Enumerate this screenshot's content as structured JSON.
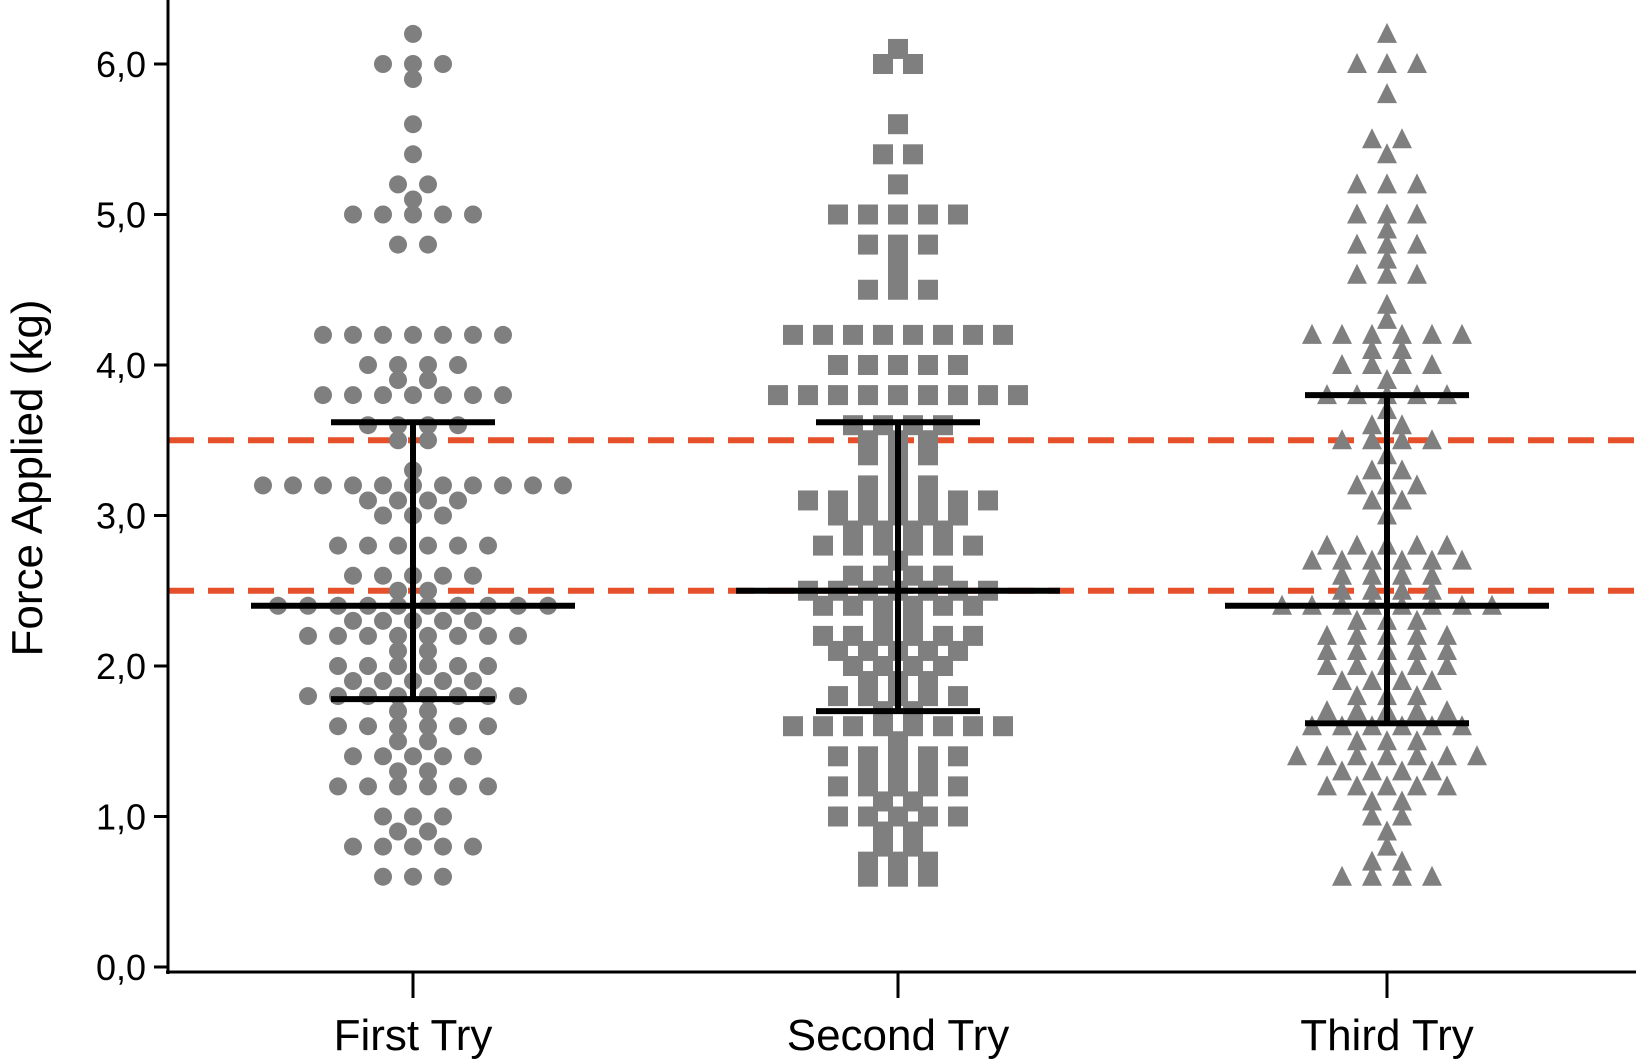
{
  "chart_data": {
    "type": "scatter",
    "title": "",
    "xlabel": "",
    "ylabel": "Force Applied (kg)",
    "categories": [
      "First Try",
      "Second Try",
      "Third Try"
    ],
    "ylim": [
      0,
      6.3
    ],
    "yticks": [
      "0,0",
      "1,0",
      "2,0",
      "3,0",
      "4,0",
      "5,0",
      "6,0"
    ],
    "reference_lines": [
      2.5,
      3.5
    ],
    "grid": false,
    "legend": "none",
    "colors": {
      "points": "#7f7f7f",
      "error_bars": "#000000",
      "reference": "#e5502a"
    },
    "series": [
      {
        "category": "First Try",
        "marker": "circle",
        "mean": 2.4,
        "error": [
          1.78,
          3.62
        ],
        "values": [
          6.2,
          6.0,
          6.0,
          6.0,
          5.9,
          5.6,
          5.4,
          5.2,
          5.2,
          5.1,
          5.0,
          5.0,
          5.0,
          5.0,
          5.0,
          4.8,
          4.8,
          4.2,
          4.2,
          4.2,
          4.2,
          4.2,
          4.2,
          4.2,
          4.0,
          4.0,
          4.0,
          4.0,
          3.9,
          3.9,
          3.8,
          3.8,
          3.8,
          3.8,
          3.8,
          3.8,
          3.8,
          3.6,
          3.6,
          3.6,
          3.6,
          3.5,
          3.5,
          3.3,
          3.2,
          3.2,
          3.2,
          3.2,
          3.2,
          3.2,
          3.2,
          3.2,
          3.2,
          3.2,
          3.2,
          3.1,
          3.1,
          3.1,
          3.1,
          3.0,
          3.0,
          3.0,
          2.8,
          2.8,
          2.8,
          2.8,
          2.8,
          2.8,
          2.6,
          2.6,
          2.6,
          2.6,
          2.6,
          2.5,
          2.5,
          2.4,
          2.4,
          2.4,
          2.4,
          2.4,
          2.4,
          2.4,
          2.4,
          2.4,
          2.4,
          2.3,
          2.3,
          2.3,
          2.3,
          2.3,
          2.2,
          2.2,
          2.2,
          2.2,
          2.2,
          2.2,
          2.2,
          2.2,
          2.1,
          2.1,
          2.0,
          2.0,
          2.0,
          2.0,
          2.0,
          2.0,
          1.9,
          1.9,
          1.9,
          1.9,
          1.9,
          1.8,
          1.8,
          1.8,
          1.8,
          1.8,
          1.8,
          1.8,
          1.8,
          1.7,
          1.7,
          1.6,
          1.6,
          1.6,
          1.6,
          1.6,
          1.6,
          1.5,
          1.5,
          1.4,
          1.4,
          1.4,
          1.4,
          1.4,
          1.3,
          1.3,
          1.2,
          1.2,
          1.2,
          1.2,
          1.2,
          1.2,
          1.0,
          1.0,
          1.0,
          0.9,
          0.9,
          0.8,
          0.8,
          0.8,
          0.8,
          0.8,
          0.6,
          0.6,
          0.6
        ]
      },
      {
        "category": "Second Try",
        "marker": "square",
        "mean": 2.5,
        "error": [
          1.7,
          3.62
        ],
        "values": [
          6.1,
          6.0,
          6.0,
          5.6,
          5.4,
          5.4,
          5.2,
          5.0,
          5.0,
          5.0,
          5.0,
          5.0,
          4.8,
          4.8,
          4.8,
          4.7,
          4.6,
          4.5,
          4.5,
          4.5,
          4.2,
          4.2,
          4.2,
          4.2,
          4.2,
          4.2,
          4.2,
          4.2,
          4.0,
          4.0,
          4.0,
          4.0,
          4.0,
          3.8,
          3.8,
          3.8,
          3.8,
          3.8,
          3.8,
          3.8,
          3.8,
          3.8,
          3.6,
          3.6,
          3.6,
          3.6,
          3.5,
          3.5,
          3.5,
          3.4,
          3.4,
          3.4,
          3.3,
          3.2,
          3.2,
          3.2,
          3.1,
          3.1,
          3.1,
          3.1,
          3.1,
          3.1,
          3.1,
          3.0,
          3.0,
          3.0,
          3.0,
          3.0,
          2.9,
          2.9,
          2.9,
          2.9,
          2.8,
          2.8,
          2.8,
          2.8,
          2.8,
          2.8,
          2.7,
          2.6,
          2.6,
          2.6,
          2.6,
          2.5,
          2.5,
          2.5,
          2.5,
          2.5,
          2.5,
          2.5,
          2.4,
          2.4,
          2.4,
          2.4,
          2.4,
          2.4,
          2.3,
          2.3,
          2.2,
          2.2,
          2.2,
          2.2,
          2.2,
          2.2,
          2.1,
          2.1,
          2.1,
          2.1,
          2.1,
          2.0,
          2.0,
          2.0,
          2.0,
          1.9,
          1.9,
          1.9,
          1.8,
          1.8,
          1.8,
          1.8,
          1.8,
          1.7,
          1.7,
          1.6,
          1.6,
          1.6,
          1.6,
          1.6,
          1.6,
          1.6,
          1.6,
          1.5,
          1.4,
          1.4,
          1.4,
          1.4,
          1.4,
          1.3,
          1.3,
          1.3,
          1.2,
          1.2,
          1.2,
          1.2,
          1.2,
          1.1,
          1.1,
          1.0,
          1.0,
          1.0,
          1.0,
          1.0,
          0.9,
          0.9,
          0.8,
          0.8,
          0.7,
          0.7,
          0.7,
          0.6,
          0.6,
          0.6
        ]
      },
      {
        "category": "Third Try",
        "marker": "triangle",
        "mean": 2.4,
        "error": [
          1.62,
          3.8
        ],
        "values": [
          6.2,
          6.0,
          6.0,
          6.0,
          5.8,
          5.5,
          5.5,
          5.4,
          5.2,
          5.2,
          5.2,
          5.0,
          5.0,
          5.0,
          4.9,
          4.8,
          4.8,
          4.8,
          4.7,
          4.6,
          4.6,
          4.6,
          4.4,
          4.3,
          4.2,
          4.2,
          4.2,
          4.2,
          4.2,
          4.2,
          4.1,
          4.1,
          4.0,
          4.0,
          4.0,
          4.0,
          3.9,
          3.8,
          3.8,
          3.8,
          3.8,
          3.8,
          3.7,
          3.6,
          3.6,
          3.5,
          3.5,
          3.5,
          3.5,
          3.4,
          3.3,
          3.3,
          3.2,
          3.2,
          3.2,
          3.1,
          3.1,
          3.0,
          2.8,
          2.8,
          2.8,
          2.8,
          2.8,
          2.7,
          2.7,
          2.7,
          2.7,
          2.7,
          2.7,
          2.6,
          2.6,
          2.6,
          2.6,
          2.5,
          2.5,
          2.5,
          2.5,
          2.4,
          2.4,
          2.4,
          2.4,
          2.4,
          2.4,
          2.4,
          2.4,
          2.3,
          2.3,
          2.3,
          2.2,
          2.2,
          2.2,
          2.2,
          2.2,
          2.1,
          2.1,
          2.1,
          2.1,
          2.1,
          2.0,
          2.0,
          2.0,
          2.0,
          2.0,
          1.9,
          1.9,
          1.9,
          1.9,
          1.8,
          1.8,
          1.8,
          1.7,
          1.7,
          1.7,
          1.7,
          1.7,
          1.6,
          1.6,
          1.6,
          1.6,
          1.6,
          1.6,
          1.5,
          1.5,
          1.5,
          1.4,
          1.4,
          1.4,
          1.4,
          1.4,
          1.4,
          1.4,
          1.3,
          1.3,
          1.3,
          1.3,
          1.2,
          1.2,
          1.2,
          1.2,
          1.2,
          1.1,
          1.1,
          1.0,
          1.0,
          0.9,
          0.8,
          0.7,
          0.7,
          0.6,
          0.6,
          0.6,
          0.6
        ]
      }
    ]
  }
}
